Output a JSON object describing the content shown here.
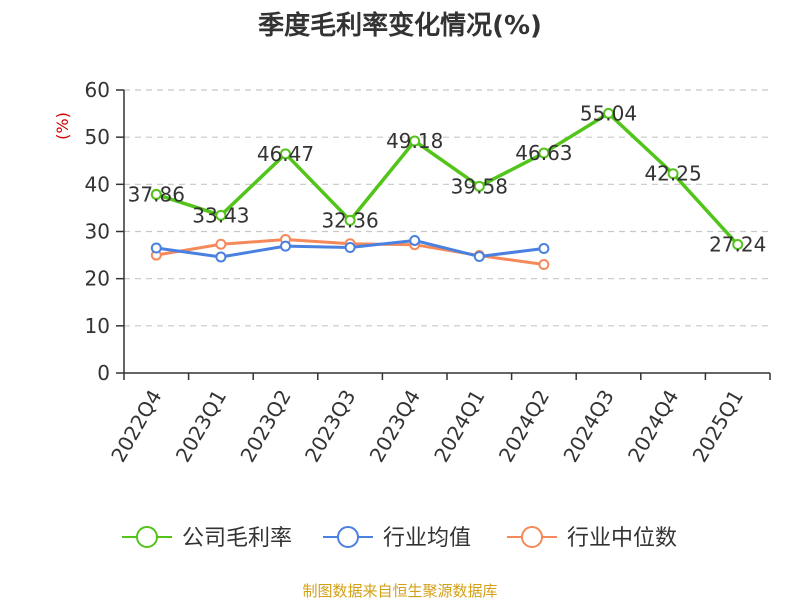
{
  "chart_data": {
    "type": "line",
    "title": "季度毛利率变化情况(%)",
    "ylabel": "(%)",
    "ylim": [
      0,
      60
    ],
    "yticks": [
      0,
      10,
      20,
      30,
      40,
      50,
      60
    ],
    "grid": true,
    "categories": [
      "2022Q4",
      "2023Q1",
      "2023Q2",
      "2023Q3",
      "2023Q4",
      "2024Q1",
      "2024Q2",
      "2024Q3",
      "2024Q4",
      "2025Q1"
    ],
    "series": [
      {
        "name": "公司毛利率",
        "color": "#52c41a",
        "values": [
          37.86,
          33.43,
          46.47,
          32.36,
          49.18,
          39.58,
          46.63,
          55.04,
          42.25,
          27.24
        ],
        "data_labels": [
          "37.86",
          "33.43",
          "46.47",
          "32.36",
          "49.18",
          "39.58",
          "46.63",
          "55.04",
          "42.25",
          "27.24"
        ]
      },
      {
        "name": "行业均值",
        "color": "#4a80e0",
        "values": [
          26.5,
          24.6,
          26.9,
          26.6,
          28.1,
          24.7,
          26.4,
          null,
          null,
          null
        ]
      },
      {
        "name": "行业中位数",
        "color": "#f5895a",
        "values": [
          25.0,
          27.3,
          28.3,
          27.4,
          27.2,
          24.9,
          23.0,
          null,
          null,
          null
        ]
      }
    ],
    "legend_position": "bottom"
  },
  "colors": {
    "title": "#333333",
    "axis": "#333333",
    "grid": "#c8c8c8",
    "ylabel": "#cc0000",
    "source": "#d4a017"
  },
  "source_text": "制图数据来自恒生聚源数据库"
}
